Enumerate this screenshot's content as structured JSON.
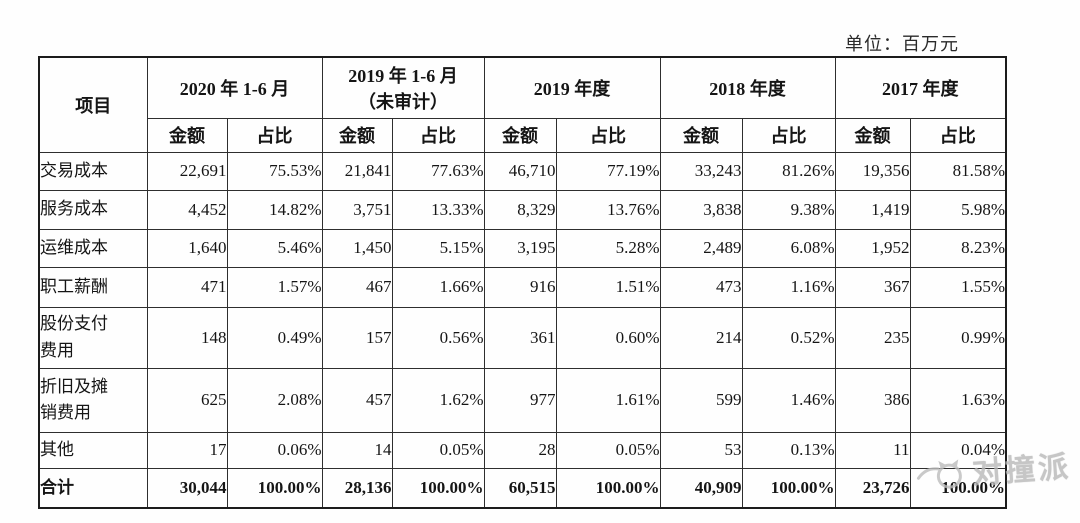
{
  "unit_label": "单位：百万元",
  "watermark": {
    "text": "对撞派",
    "color": "#b9b9b9"
  },
  "table": {
    "item_header": "项目",
    "sub_headers": [
      "金额",
      "占比"
    ],
    "groups": [
      {
        "label": "2020 年 1-6 月",
        "label2": ""
      },
      {
        "label": "2019 年 1-6 月",
        "label2": "（未审计）"
      },
      {
        "label": "2019 年度",
        "label2": ""
      },
      {
        "label": "2018 年度",
        "label2": ""
      },
      {
        "label": "2017 年度",
        "label2": ""
      }
    ],
    "rows": [
      {
        "item": "交易成本",
        "values": [
          "22,691",
          "75.53%",
          "21,841",
          "77.63%",
          "46,710",
          "77.19%",
          "33,243",
          "81.26%",
          "19,356",
          "81.58%"
        ]
      },
      {
        "item": "服务成本",
        "values": [
          "4,452",
          "14.82%",
          "3,751",
          "13.33%",
          "8,329",
          "13.76%",
          "3,838",
          "9.38%",
          "1,419",
          "5.98%"
        ]
      },
      {
        "item": "运维成本",
        "values": [
          "1,640",
          "5.46%",
          "1,450",
          "5.15%",
          "3,195",
          "5.28%",
          "2,489",
          "6.08%",
          "1,952",
          "8.23%"
        ]
      },
      {
        "item": "职工薪酬",
        "values": [
          "471",
          "1.57%",
          "467",
          "1.66%",
          "916",
          "1.51%",
          "473",
          "1.16%",
          "367",
          "1.55%"
        ]
      },
      {
        "item": "股份支付\n费用",
        "values": [
          "148",
          "0.49%",
          "157",
          "0.56%",
          "361",
          "0.60%",
          "214",
          "0.52%",
          "235",
          "0.99%"
        ]
      },
      {
        "item": "折旧及摊\n销费用",
        "values": [
          "625",
          "2.08%",
          "457",
          "1.62%",
          "977",
          "1.61%",
          "599",
          "1.46%",
          "386",
          "1.63%"
        ]
      },
      {
        "item": "其他",
        "values": [
          "17",
          "0.06%",
          "14",
          "0.05%",
          "28",
          "0.05%",
          "53",
          "0.13%",
          "11",
          "0.04%"
        ]
      }
    ],
    "total_row": {
      "item": "合计",
      "values": [
        "30,044",
        "100.00%",
        "28,136",
        "100.00%",
        "60,515",
        "100.00%",
        "40,909",
        "100.00%",
        "23,726",
        "100.00%"
      ]
    }
  }
}
